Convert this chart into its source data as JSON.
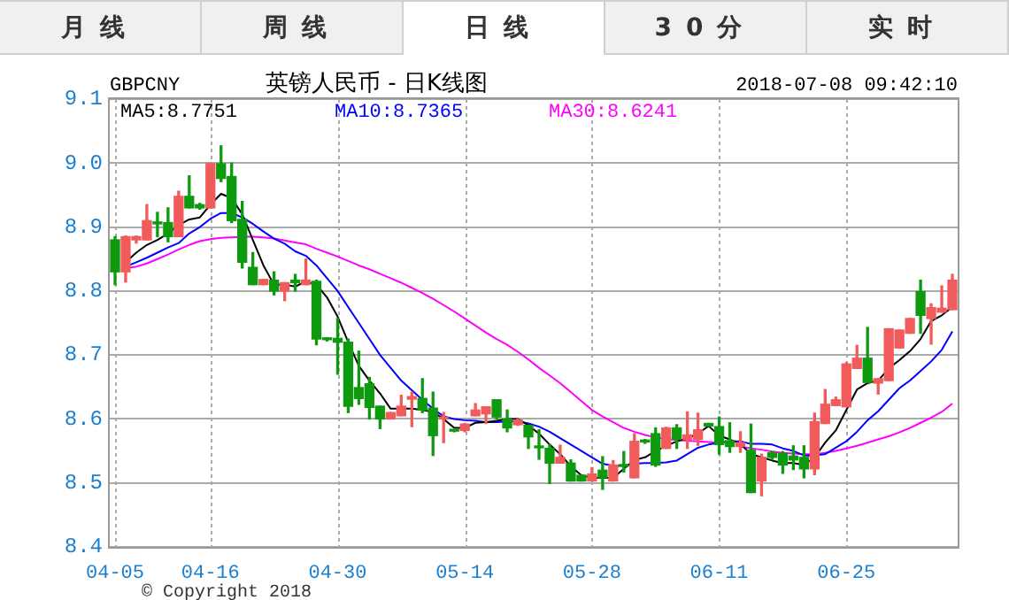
{
  "chart_data": {
    "type": "candlestick",
    "title": "英镑人民币 - 日K线图",
    "subtitle": "GBPCNY",
    "annotations": [
      "月线",
      "周线",
      "日线",
      "30分",
      "实时",
      "2018-07-08 09:42:10",
      "© Copyright 2018"
    ],
    "categories": [
      "04-05",
      null,
      null,
      null,
      null,
      null,
      null,
      null,
      null,
      "04-16",
      null,
      null,
      null,
      null,
      null,
      null,
      null,
      null,
      null,
      null,
      null,
      "04-30",
      null,
      null,
      null,
      null,
      null,
      null,
      null,
      null,
      null,
      null,
      null,
      "05-14",
      null,
      null,
      null,
      null,
      null,
      null,
      null,
      null,
      null,
      null,
      null,
      "05-28",
      null,
      null,
      null,
      null,
      null,
      null,
      null,
      null,
      null,
      null,
      null,
      "06-11",
      null,
      null,
      null,
      null,
      null,
      null,
      null,
      null,
      null,
      null,
      null,
      "06-25",
      null,
      null,
      null,
      null,
      null,
      null,
      null,
      null,
      null,
      null
    ],
    "ohlc": [
      [
        8.88,
        8.885,
        8.81,
        8.83
      ],
      [
        8.83,
        8.886,
        8.814,
        8.885
      ],
      [
        8.88,
        8.886,
        8.875,
        8.885
      ],
      [
        8.88,
        8.935,
        8.88,
        8.91
      ],
      [
        8.908,
        8.923,
        8.885,
        8.905
      ],
      [
        8.907,
        8.93,
        8.877,
        8.885
      ],
      [
        8.885,
        8.956,
        8.885,
        8.948
      ],
      [
        8.948,
        8.98,
        8.93,
        8.93
      ],
      [
        8.935,
        8.937,
        8.928,
        8.93
      ],
      [
        8.93,
        9.0,
        8.93,
        8.999
      ],
      [
        8.999,
        9.027,
        8.971,
        8.976
      ],
      [
        8.979,
        9.0,
        8.907,
        8.91
      ],
      [
        8.912,
        8.94,
        8.836,
        8.845
      ],
      [
        8.837,
        8.86,
        8.81,
        8.81
      ],
      [
        8.81,
        8.818,
        8.81,
        8.818
      ],
      [
        8.817,
        8.83,
        8.794,
        8.8
      ],
      [
        8.8,
        8.813,
        8.785,
        8.813
      ],
      [
        8.817,
        8.826,
        8.8,
        8.813
      ],
      [
        8.81,
        8.85,
        8.81,
        8.817
      ],
      [
        8.815,
        8.817,
        8.716,
        8.725
      ],
      [
        8.726,
        8.727,
        8.722,
        8.724
      ],
      [
        8.726,
        8.757,
        8.67,
        8.72
      ],
      [
        8.72,
        8.725,
        8.61,
        8.62
      ],
      [
        8.649,
        8.706,
        8.623,
        8.632
      ],
      [
        8.655,
        8.665,
        8.6,
        8.618
      ],
      [
        8.62,
        8.62,
        8.585,
        8.6
      ],
      [
        8.6,
        8.61,
        8.6,
        8.61
      ],
      [
        8.605,
        8.637,
        8.605,
        8.62
      ],
      [
        8.631,
        8.642,
        8.588,
        8.635
      ],
      [
        8.632,
        8.663,
        8.61,
        8.614
      ],
      [
        8.617,
        8.642,
        8.543,
        8.574
      ],
      [
        8.6,
        8.61,
        8.563,
        8.602
      ],
      [
        8.582,
        8.583,
        8.58,
        8.581
      ],
      [
        8.582,
        8.593,
        8.58,
        8.592
      ],
      [
        8.605,
        8.624,
        8.605,
        8.614
      ],
      [
        8.608,
        8.619,
        8.593,
        8.619
      ],
      [
        8.63,
        8.63,
        8.6,
        8.603
      ],
      [
        8.6,
        8.614,
        8.58,
        8.586
      ],
      [
        8.591,
        8.6,
        8.59,
        8.598
      ],
      [
        8.59,
        8.59,
        8.554,
        8.572
      ],
      [
        8.556,
        8.583,
        8.537,
        8.555
      ],
      [
        8.554,
        8.56,
        8.499,
        8.531
      ],
      [
        8.531,
        8.559,
        8.531,
        8.54
      ],
      [
        8.531,
        8.536,
        8.503,
        8.503
      ],
      [
        8.512,
        8.512,
        8.503,
        8.503
      ],
      [
        8.503,
        8.524,
        8.503,
        8.514
      ],
      [
        8.52,
        8.541,
        8.49,
        8.508
      ],
      [
        8.503,
        8.535,
        8.503,
        8.528
      ],
      [
        8.527,
        8.549,
        8.517,
        8.526
      ],
      [
        8.508,
        8.577,
        8.508,
        8.565
      ],
      [
        8.567,
        8.568,
        8.562,
        8.564
      ],
      [
        8.577,
        8.586,
        8.526,
        8.528
      ],
      [
        8.554,
        8.587,
        8.554,
        8.586
      ],
      [
        8.586,
        8.591,
        8.554,
        8.568
      ],
      [
        8.568,
        8.611,
        8.554,
        8.575
      ],
      [
        8.568,
        8.609,
        8.559,
        8.583
      ],
      [
        8.593,
        8.593,
        8.589,
        8.589
      ],
      [
        8.588,
        8.603,
        8.545,
        8.56
      ],
      [
        8.566,
        8.594,
        8.548,
        8.557
      ],
      [
        8.557,
        8.58,
        8.548,
        8.563
      ],
      [
        8.551,
        8.592,
        8.485,
        8.485
      ],
      [
        8.503,
        8.545,
        8.48,
        8.54
      ],
      [
        8.547,
        8.549,
        8.537,
        8.54
      ],
      [
        8.546,
        8.549,
        8.515,
        8.528
      ],
      [
        8.542,
        8.558,
        8.521,
        8.536
      ],
      [
        8.54,
        8.558,
        8.508,
        8.522
      ],
      [
        8.522,
        8.609,
        8.513,
        8.596
      ],
      [
        8.593,
        8.646,
        8.593,
        8.623
      ],
      [
        8.621,
        8.634,
        8.621,
        8.63
      ],
      [
        8.619,
        8.688,
        8.619,
        8.686
      ],
      [
        8.679,
        8.715,
        8.679,
        8.695
      ],
      [
        8.695,
        8.743,
        8.657,
        8.657
      ],
      [
        8.656,
        8.663,
        8.639,
        8.663
      ],
      [
        8.66,
        8.741,
        8.66,
        8.741
      ],
      [
        8.711,
        8.739,
        8.711,
        8.739
      ],
      [
        8.734,
        8.757,
        8.734,
        8.757
      ],
      [
        8.799,
        8.817,
        8.734,
        8.762
      ],
      [
        8.757,
        8.78,
        8.717,
        8.774
      ],
      [
        8.767,
        8.808,
        8.767,
        8.773
      ],
      [
        8.771,
        8.826,
        8.771,
        8.817
      ]
    ],
    "colors": [
      "#0e9a0e",
      "#f25b5b",
      "#f25b5b",
      "#f25b5b",
      "#0e9a0e",
      "#0e9a0e",
      "#f25b5b",
      "#0e9a0e",
      "#0e9a0e",
      "#f25b5b",
      "#0e9a0e",
      "#0e9a0e",
      "#0e9a0e",
      "#0e9a0e",
      "#f25b5b",
      "#0e9a0e",
      "#f25b5b",
      "#0e9a0e",
      "#f25b5b",
      "#0e9a0e",
      "#0e9a0e",
      "#0e9a0e",
      "#0e9a0e",
      "#0e9a0e",
      "#0e9a0e",
      "#0e9a0e",
      "#f25b5b",
      "#f25b5b",
      "#f25b5b",
      "#0e9a0e",
      "#0e9a0e",
      "#f25b5b",
      "#0e9a0e",
      "#f25b5b",
      "#f25b5b",
      "#f25b5b",
      "#0e9a0e",
      "#0e9a0e",
      "#f25b5b",
      "#0e9a0e",
      "#0e9a0e",
      "#0e9a0e",
      "#f25b5b",
      "#0e9a0e",
      "#0e9a0e",
      "#f25b5b",
      "#0e9a0e",
      "#f25b5b",
      "#0e9a0e",
      "#f25b5b",
      "#0e9a0e",
      "#0e9a0e",
      "#f25b5b",
      "#0e9a0e",
      "#f25b5b",
      "#f25b5b",
      "#0e9a0e",
      "#0e9a0e",
      "#0e9a0e",
      "#f25b5b",
      "#0e9a0e",
      "#f25b5b",
      "#0e9a0e",
      "#0e9a0e",
      "#0e9a0e",
      "#0e9a0e",
      "#f25b5b",
      "#f25b5b",
      "#f25b5b",
      "#f25b5b",
      "#f25b5b",
      "#0e9a0e",
      "#f25b5b",
      "#f25b5b",
      "#f25b5b",
      "#f25b5b",
      "#0e9a0e",
      "#f25b5b",
      "#f25b5b",
      "#f25b5b"
    ],
    "series": [
      {
        "type": "line",
        "name": "MA5:8.7751",
        "color": "#000000",
        "values": [
          null,
          8.845,
          8.86,
          8.872,
          8.88,
          8.89,
          8.903,
          8.912,
          8.915,
          8.935,
          8.952,
          8.945,
          8.92,
          8.88,
          8.84,
          8.81,
          8.81,
          8.807,
          8.815,
          8.81,
          8.79,
          8.76,
          8.72,
          8.683,
          8.66,
          8.64,
          8.616,
          8.616,
          8.616,
          8.614,
          8.611,
          8.6,
          8.586,
          8.586,
          8.594,
          8.595,
          8.597,
          8.6,
          8.6,
          8.59,
          8.577,
          8.56,
          8.545,
          8.526,
          8.512,
          8.508,
          8.508,
          8.508,
          8.522,
          8.536,
          8.54,
          8.55,
          8.558,
          8.565,
          8.57,
          8.577,
          8.589,
          8.574,
          8.568,
          8.561,
          8.545,
          8.54,
          8.535,
          8.531,
          8.531,
          8.528,
          8.54,
          8.563,
          8.582,
          8.614,
          8.646,
          8.656,
          8.66,
          8.679,
          8.692,
          8.706,
          8.725,
          8.753,
          8.762,
          8.775
        ]
      },
      {
        "type": "line",
        "name": "MA10:8.7365",
        "color": "#0000ff",
        "values": [
          null,
          8.838,
          8.845,
          8.852,
          8.86,
          8.868,
          8.875,
          8.89,
          8.9,
          8.913,
          8.922,
          8.922,
          8.915,
          8.905,
          8.893,
          8.882,
          8.874,
          8.862,
          8.855,
          8.84,
          8.82,
          8.8,
          8.775,
          8.75,
          8.725,
          8.7,
          8.68,
          8.66,
          8.645,
          8.63,
          8.616,
          8.604,
          8.6,
          8.598,
          8.597,
          8.595,
          8.595,
          8.596,
          8.596,
          8.593,
          8.588,
          8.58,
          8.57,
          8.56,
          8.55,
          8.54,
          8.53,
          8.527,
          8.527,
          8.53,
          8.531,
          8.531,
          8.532,
          8.535,
          8.545,
          8.555,
          8.56,
          8.563,
          8.565,
          8.565,
          8.561,
          8.561,
          8.56,
          8.554,
          8.55,
          8.543,
          8.543,
          8.545,
          8.555,
          8.565,
          8.58,
          8.598,
          8.612,
          8.63,
          8.648,
          8.66,
          8.675,
          8.69,
          8.708,
          8.737
        ]
      },
      {
        "type": "line",
        "name": "MA30:8.6241",
        "color": "#ff00ff",
        "values": [
          null,
          8.836,
          8.838,
          8.843,
          8.85,
          8.857,
          8.865,
          8.872,
          8.878,
          8.881,
          8.883,
          8.884,
          8.885,
          8.885,
          8.884,
          8.882,
          8.879,
          8.876,
          8.873,
          8.866,
          8.86,
          8.854,
          8.847,
          8.84,
          8.834,
          8.827,
          8.82,
          8.813,
          8.805,
          8.797,
          8.788,
          8.778,
          8.768,
          8.757,
          8.746,
          8.735,
          8.725,
          8.716,
          8.705,
          8.693,
          8.68,
          8.668,
          8.656,
          8.642,
          8.628,
          8.614,
          8.604,
          8.595,
          8.586,
          8.58,
          8.575,
          8.571,
          8.569,
          8.567,
          8.566,
          8.565,
          8.564,
          8.563,
          null,
          8.557,
          8.554,
          8.552,
          8.549,
          8.547,
          8.546,
          8.545,
          8.545,
          8.547,
          8.55,
          8.554,
          8.558,
          8.563,
          8.568,
          8.573,
          8.579,
          8.586,
          8.594,
          8.602,
          8.611,
          8.624
        ]
      }
    ],
    "ylim": [
      8.4,
      9.1
    ],
    "yticks": [
      8.4,
      8.5,
      8.6,
      8.7,
      8.8,
      8.9,
      {
        "value": 9,
        "label": "9.0"
      },
      9.1
    ],
    "grid": true,
    "legend": "top left",
    "marker": "none",
    "line_style": "solid"
  }
}
